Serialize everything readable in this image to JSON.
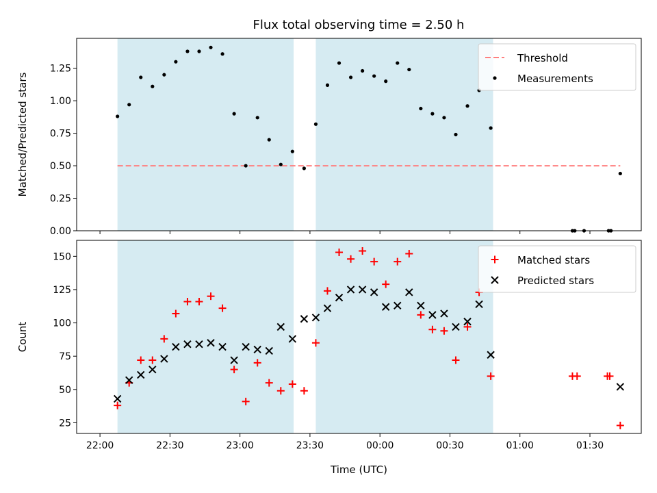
{
  "chart_data": [
    {
      "type": "scatter",
      "title": "Flux total observing time = 2.50 h",
      "xlabel": "",
      "ylabel": "Matched/Predicted stars",
      "xlim_minutes_from_2200": [
        -10,
        232
      ],
      "ylim": [
        0,
        1.48
      ],
      "yticks": [
        "0.00",
        "0.25",
        "0.50",
        "0.75",
        "1.00",
        "1.25"
      ],
      "ytick_values": [
        0,
        0.25,
        0.5,
        0.75,
        1.0,
        1.25
      ],
      "shaded_intervals": [
        [
          7.5,
          83
        ],
        [
          92.5,
          168.5
        ]
      ],
      "shade_color": "#add8e6",
      "threshold": {
        "name": "Threshold",
        "value": 0.5,
        "x_range": [
          7.5,
          223
        ],
        "color": "#ff7f7f"
      },
      "legend": [
        "Threshold",
        "Measurements"
      ],
      "legend_position": "upper right",
      "series": [
        {
          "name": "Measurements",
          "color": "#000000",
          "x": [
            7.5,
            12.5,
            17.5,
            22.5,
            27.5,
            32.5,
            37.5,
            42.5,
            47.5,
            52.5,
            57.5,
            62.5,
            67.5,
            72.5,
            77.5,
            82.5,
            87.5,
            92.5,
            97.5,
            102.5,
            107.5,
            112.5,
            117.5,
            122.5,
            127.5,
            132.5,
            137.5,
            142.5,
            147.5,
            152.5,
            157.5,
            162.5,
            167.5,
            202.5,
            203.5,
            207.5,
            218,
            219,
            223
          ],
          "y": [
            0.88,
            0.97,
            1.18,
            1.11,
            1.2,
            1.3,
            1.38,
            1.38,
            1.41,
            1.36,
            0.9,
            0.5,
            0.87,
            0.7,
            0.51,
            0.61,
            0.48,
            0.82,
            1.12,
            1.29,
            1.18,
            1.23,
            1.19,
            1.15,
            1.29,
            1.24,
            0.94,
            0.9,
            0.87,
            0.74,
            0.96,
            1.08,
            0.79,
            0.0,
            0.0,
            0.0,
            0.0,
            0.0,
            0.44
          ]
        }
      ]
    },
    {
      "type": "scatter",
      "title": "",
      "xlabel": "Time (UTC)",
      "ylabel": "Count",
      "xlim_minutes_from_2200": [
        -10,
        232
      ],
      "ylim": [
        17,
        162
      ],
      "yticks": [
        "25",
        "50",
        "75",
        "100",
        "125",
        "150"
      ],
      "ytick_values": [
        25,
        50,
        75,
        100,
        125,
        150
      ],
      "xticks": [
        "22:00",
        "22:30",
        "23:00",
        "23:30",
        "00:00",
        "00:30",
        "01:00",
        "01:30"
      ],
      "xtick_values": [
        0,
        30,
        60,
        90,
        120,
        150,
        180,
        210
      ],
      "shaded_intervals": [
        [
          7.5,
          83
        ],
        [
          92.5,
          168.5
        ]
      ],
      "shade_color": "#add8e6",
      "legend": [
        "Matched stars",
        "Predicted stars"
      ],
      "legend_position": "upper right",
      "series": [
        {
          "name": "Matched stars",
          "marker": "plus",
          "color": "#ff0000",
          "x": [
            7.5,
            12.5,
            17.5,
            22.5,
            27.5,
            32.5,
            37.5,
            42.5,
            47.5,
            52.5,
            57.5,
            62.5,
            67.5,
            72.5,
            77.5,
            82.5,
            87.5,
            92.5,
            97.5,
            102.5,
            107.5,
            112.5,
            117.5,
            122.5,
            127.5,
            132.5,
            137.5,
            142.5,
            147.5,
            152.5,
            157.5,
            162.5,
            167.5,
            202.5,
            204.5,
            217.5,
            218.5,
            223
          ],
          "y": [
            38,
            55,
            72,
            72,
            88,
            107,
            116,
            116,
            120,
            111,
            65,
            41,
            70,
            55,
            49,
            54,
            49,
            85,
            124,
            153,
            148,
            154,
            146,
            129,
            146,
            152,
            106,
            95,
            94,
            72,
            97,
            123,
            60,
            60,
            60,
            60,
            60,
            23
          ]
        },
        {
          "name": "Predicted stars",
          "marker": "x",
          "color": "#000000",
          "x": [
            7.5,
            12.5,
            17.5,
            22.5,
            27.5,
            32.5,
            37.5,
            42.5,
            47.5,
            52.5,
            57.5,
            62.5,
            67.5,
            72.5,
            77.5,
            82.5,
            87.5,
            92.5,
            97.5,
            102.5,
            107.5,
            112.5,
            117.5,
            122.5,
            127.5,
            132.5,
            137.5,
            142.5,
            147.5,
            152.5,
            157.5,
            162.5,
            167.5,
            223
          ],
          "y": [
            43,
            57,
            61,
            65,
            73,
            82,
            84,
            84,
            85,
            82,
            72,
            82,
            80,
            79,
            97,
            88,
            103,
            104,
            111,
            119,
            125,
            125,
            123,
            112,
            113,
            123,
            113,
            106,
            107,
            97,
            101,
            114,
            76,
            52
          ]
        }
      ]
    }
  ]
}
